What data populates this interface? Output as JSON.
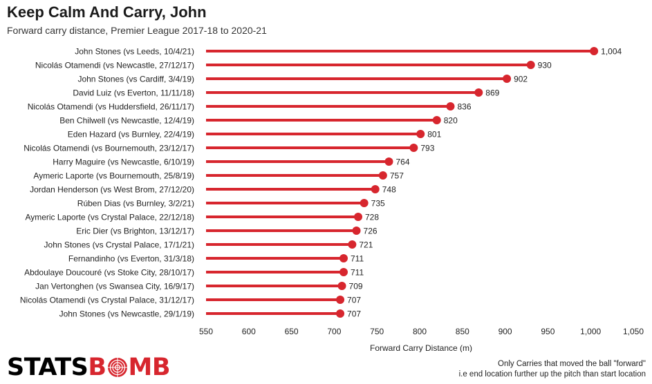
{
  "header": {
    "title": "Keep Calm And Carry, John",
    "subtitle": "Forward carry distance, Premier League 2017-18 to 2020-21"
  },
  "footer": {
    "logo_stats": "STATS",
    "logo_bomb_b1": "B",
    "logo_bomb_mb": "MB",
    "note_line1": "Only Carries that moved the ball \"forward\"",
    "note_line2": "i.e end location further up the pitch than start location"
  },
  "colors": {
    "accent": "#d7262e",
    "text": "#222222"
  },
  "chart_data": {
    "type": "bar",
    "orientation": "horizontal",
    "style": "lollipop",
    "title": "Keep Calm And Carry, John",
    "subtitle": "Forward carry distance, Premier League 2017-18 to 2020-21",
    "xlabel": "Forward Carry Distance (m)",
    "ylabel": "",
    "xlim": [
      550,
      1050
    ],
    "xticks": [
      550,
      600,
      650,
      700,
      750,
      800,
      850,
      900,
      950,
      1000,
      1050
    ],
    "xtick_labels": [
      "550",
      "600",
      "650",
      "700",
      "750",
      "800",
      "850",
      "900",
      "950",
      "1,000",
      "1,050"
    ],
    "grid": false,
    "categories": [
      "John Stones (vs Leeds, 10/4/21)",
      "Nicolás Otamendi (vs Newcastle, 27/12/17)",
      "John Stones (vs Cardiff, 3/4/19)",
      "David Luiz (vs Everton, 11/11/18)",
      "Nicolás Otamendi (vs Huddersfield, 26/11/17)",
      "Ben Chilwell (vs Newcastle, 12/4/19)",
      "Eden Hazard (vs Burnley, 22/4/19)",
      "Nicolás Otamendi (vs Bournemouth, 23/12/17)",
      "Harry Maguire (vs Newcastle, 6/10/19)",
      "Aymeric Laporte (vs Bournemouth, 25/8/19)",
      "Jordan Henderson (vs West Brom, 27/12/20)",
      "Rúben Dias (vs Burnley, 3/2/21)",
      "Aymeric Laporte (vs Crystal Palace, 22/12/18)",
      "Eric Dier (vs Brighton, 13/12/17)",
      "John Stones (vs Crystal Palace, 17/1/21)",
      "Fernandinho (vs Everton, 31/3/18)",
      "Abdoulaye Doucouré (vs Stoke City, 28/10/17)",
      "Jan Vertonghen (vs Swansea City, 16/9/17)",
      "Nicolás Otamendi (vs Crystal Palace, 31/12/17)",
      "John Stones (vs Newcastle, 29/1/19)"
    ],
    "values": [
      1004,
      930,
      902,
      869,
      836,
      820,
      801,
      793,
      764,
      757,
      748,
      735,
      728,
      726,
      721,
      711,
      711,
      709,
      707,
      707
    ],
    "value_labels": [
      "1,004",
      "930",
      "902",
      "869",
      "836",
      "820",
      "801",
      "793",
      "764",
      "757",
      "748",
      "735",
      "728",
      "726",
      "721",
      "711",
      "711",
      "709",
      "707",
      "707"
    ]
  }
}
